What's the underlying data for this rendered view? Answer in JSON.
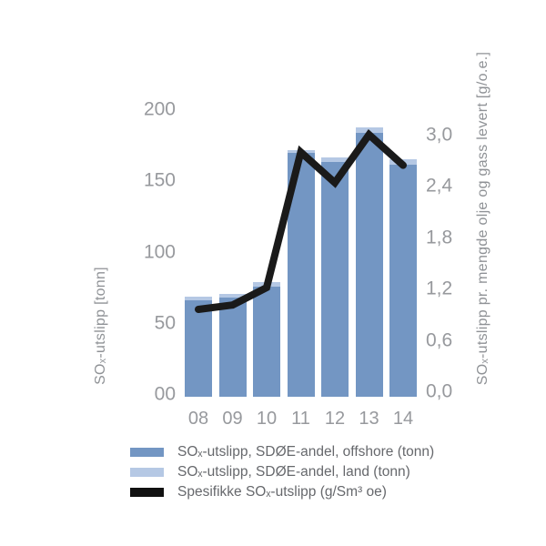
{
  "chart_data": {
    "type": "bar",
    "subtype": "stacked-bar-with-line-overlay",
    "title": "",
    "categories": [
      "08",
      "09",
      "10",
      "11",
      "12",
      "13",
      "14"
    ],
    "series": [
      {
        "name": "SOₓ-utslipp, SDØE-andel, offshore (tonn)",
        "type": "bar",
        "stack": "sox",
        "axis": "left",
        "color": "#7396c3",
        "values": [
          67,
          69,
          77,
          170,
          164,
          184,
          162
        ]
      },
      {
        "name": "SOₓ-utslipp, SDØE-andel, land (tonn)",
        "type": "bar",
        "stack": "sox",
        "axis": "left",
        "color": "#b5c8e4",
        "values": [
          3,
          3,
          3,
          2,
          3,
          4,
          4
        ]
      },
      {
        "name": "Spesifikke SOₓ-utslipp (g/Sm³ oe)",
        "type": "line",
        "axis": "right",
        "color": "#1a1a1a",
        "values": [
          1.0,
          1.05,
          1.25,
          2.8,
          2.45,
          3.0,
          2.65
        ]
      }
    ],
    "left_axis": {
      "label": "SOₓ-utslipp [tonn]",
      "tick_labels": [
        "00",
        "50",
        "100",
        "150",
        "200"
      ],
      "tick_values": [
        0,
        50,
        100,
        150,
        200
      ],
      "range": [
        0,
        200
      ]
    },
    "right_axis": {
      "label": "SOₓ-utslipp pr. mengde olje og gass levert [g/o.e.]",
      "tick_labels": [
        "0,0",
        "0,6",
        "1,2",
        "1,8",
        "2,4",
        "3,0"
      ],
      "tick_values": [
        0,
        0.6,
        1.2,
        1.8,
        2.4,
        3.0
      ],
      "range": [
        0,
        3.3
      ]
    },
    "grid": false,
    "legend_position": "bottom-left"
  },
  "legend": {
    "items": [
      {
        "label": "SOₓ-utslipp, SDØE-andel, offshore (tonn)",
        "color": "#7396c3"
      },
      {
        "label": "SOₓ-utslipp, SDØE-andel, land (tonn)",
        "color": "#b5c8e4"
      },
      {
        "label": "Spesifikke SOₓ-utslipp (g/Sm³ oe)",
        "color": "#111111"
      }
    ]
  },
  "colors": {
    "offshore_bar": "#7396c3",
    "land_bar": "#b5c8e4",
    "line": "#1a1a1a",
    "tick_text": "#97999d",
    "axis_title_text": "#8f9296",
    "legend_text": "#66686c",
    "background": "#ffffff"
  }
}
